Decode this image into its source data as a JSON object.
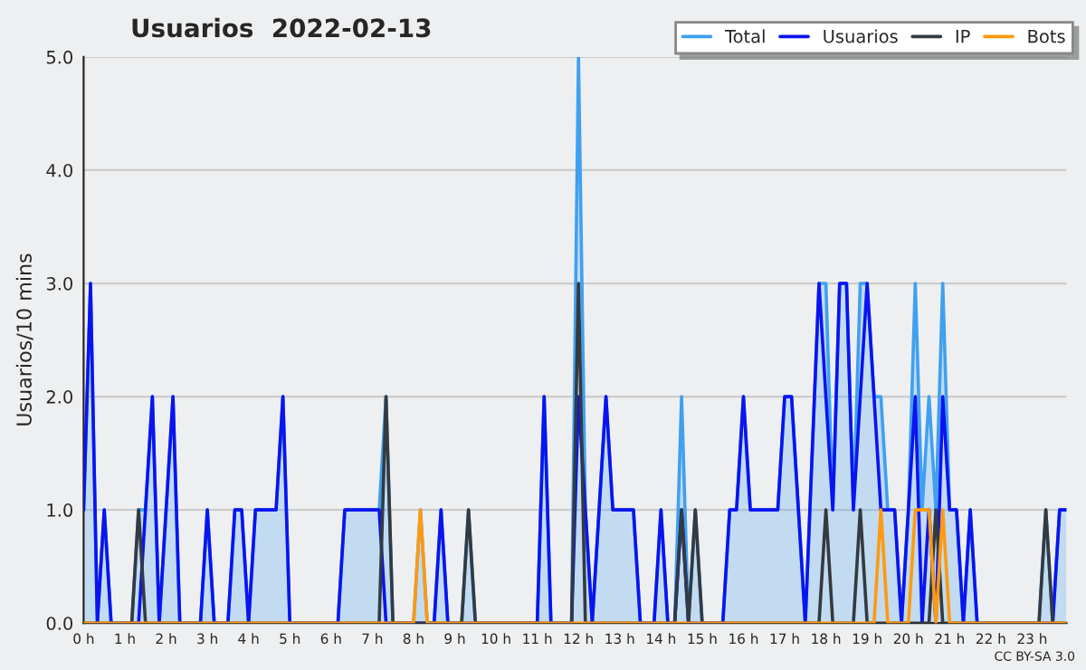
{
  "chart_data": {
    "type": "line",
    "title": "Usuarios  2022-02-13",
    "ylabel": "Usuarios/10 mins",
    "x": [
      0,
      0.167,
      0.333,
      0.5,
      0.667,
      0.833,
      1,
      1.167,
      1.333,
      1.5,
      1.667,
      1.833,
      2,
      2.167,
      2.333,
      2.5,
      2.667,
      2.833,
      3,
      3.167,
      3.333,
      3.5,
      3.667,
      3.833,
      4,
      4.167,
      4.333,
      4.5,
      4.667,
      4.833,
      5,
      5.167,
      5.333,
      5.5,
      5.667,
      5.833,
      6,
      6.167,
      6.333,
      6.5,
      6.667,
      6.833,
      7,
      7.167,
      7.333,
      7.5,
      7.667,
      7.833,
      8,
      8.167,
      8.333,
      8.5,
      8.667,
      8.833,
      9,
      9.167,
      9.333,
      9.5,
      9.667,
      9.833,
      10,
      10.167,
      10.333,
      10.5,
      10.667,
      10.833,
      11,
      11.167,
      11.333,
      11.5,
      11.667,
      11.833,
      12,
      12.167,
      12.333,
      12.5,
      12.667,
      12.833,
      13,
      13.167,
      13.333,
      13.5,
      13.667,
      13.833,
      14,
      14.167,
      14.333,
      14.5,
      14.667,
      14.833,
      15,
      15.167,
      15.333,
      15.5,
      15.667,
      15.833,
      16,
      16.167,
      16.333,
      16.5,
      16.667,
      16.833,
      17,
      17.167,
      17.333,
      17.5,
      17.667,
      17.833,
      18,
      18.167,
      18.333,
      18.5,
      18.667,
      18.833,
      19,
      19.167,
      19.333,
      19.5,
      19.667,
      19.833,
      20,
      20.167,
      20.333,
      20.5,
      20.667,
      20.833,
      21,
      21.167,
      21.333,
      21.5,
      21.667,
      21.833,
      22,
      22.167,
      22.333,
      22.5,
      22.667,
      22.833,
      23,
      23.167,
      23.333,
      23.5,
      23.667,
      23.833
    ],
    "series": [
      {
        "name": "Total",
        "type": "area",
        "color": "#3fa0f0",
        "values": [
          1,
          3,
          0,
          1,
          0,
          0,
          0,
          0,
          1,
          1,
          2,
          0,
          1,
          2,
          0,
          0,
          0,
          0,
          1,
          0,
          0,
          0,
          1,
          1,
          0,
          1,
          1,
          1,
          1,
          2,
          0,
          0,
          0,
          0,
          0,
          0,
          0,
          0,
          1,
          1,
          1,
          1,
          1,
          1,
          2,
          0,
          0,
          0,
          0,
          1,
          0,
          0,
          1,
          0,
          0,
          0,
          1,
          0,
          0,
          0,
          0,
          0,
          0,
          0,
          0,
          0,
          0,
          2,
          0,
          0,
          0,
          0,
          5,
          1,
          0,
          1,
          2,
          1,
          1,
          1,
          1,
          0,
          0,
          0,
          1,
          0,
          0,
          2,
          0,
          1,
          0,
          0,
          0,
          0,
          1,
          1,
          2,
          1,
          1,
          1,
          1,
          1,
          2,
          2,
          1,
          0,
          1.5,
          3,
          3,
          1,
          3,
          3,
          1,
          3,
          3,
          2,
          2,
          1,
          1,
          0,
          1,
          3,
          1,
          2,
          1,
          3,
          1,
          1,
          0,
          1,
          0,
          0,
          0,
          0,
          0,
          0,
          0,
          0,
          0,
          0,
          1,
          0,
          1,
          1
        ]
      },
      {
        "name": "Usuarios",
        "color": "#0a14f0",
        "values": [
          1,
          3,
          0,
          1,
          0,
          0,
          0,
          0,
          0,
          1,
          2,
          0,
          1,
          2,
          0,
          0,
          0,
          0,
          1,
          0,
          0,
          0,
          1,
          1,
          0,
          1,
          1,
          1,
          1,
          2,
          0,
          0,
          0,
          0,
          0,
          0,
          0,
          0,
          1,
          1,
          1,
          1,
          1,
          1,
          0,
          0,
          0,
          0,
          0,
          0,
          0,
          0,
          1,
          0,
          0,
          0,
          0,
          0,
          0,
          0,
          0,
          0,
          0,
          0,
          0,
          0,
          0,
          2,
          0,
          0,
          0,
          0,
          2,
          1,
          0,
          1,
          2,
          1,
          1,
          1,
          1,
          0,
          0,
          0,
          1,
          0,
          0,
          1,
          0,
          0,
          0,
          0,
          0,
          0,
          1,
          1,
          2,
          1,
          1,
          1,
          1,
          1,
          2,
          2,
          1,
          0,
          1.5,
          3,
          2,
          1,
          3,
          3,
          1,
          2,
          3,
          2,
          1,
          1,
          1,
          0,
          1,
          2,
          0,
          1,
          0,
          2,
          1,
          1,
          0,
          1,
          0,
          0,
          0,
          0,
          0,
          0,
          0,
          0,
          0,
          0,
          0,
          0,
          1,
          1
        ]
      },
      {
        "name": "IP",
        "color": "#333a40",
        "values": [
          0,
          0,
          0,
          0,
          0,
          0,
          0,
          0,
          1,
          0,
          0,
          0,
          0,
          0,
          0,
          0,
          0,
          0,
          0,
          0,
          0,
          0,
          0,
          0,
          0,
          0,
          0,
          0,
          0,
          0,
          0,
          0,
          0,
          0,
          0,
          0,
          0,
          0,
          0,
          0,
          0,
          0,
          0,
          0,
          2,
          0,
          0,
          0,
          0,
          0,
          0,
          0,
          0,
          0,
          0,
          0,
          1,
          0,
          0,
          0,
          0,
          0,
          0,
          0,
          0,
          0,
          0,
          0,
          0,
          0,
          0,
          0,
          3,
          0,
          0,
          0,
          0,
          0,
          0,
          0,
          0,
          0,
          0,
          0,
          0,
          0,
          0,
          1,
          0,
          1,
          0,
          0,
          0,
          0,
          0,
          0,
          0,
          0,
          0,
          0,
          0,
          0,
          0,
          0,
          0,
          0,
          0,
          0,
          1,
          0,
          0,
          0,
          0,
          1,
          0,
          0,
          0,
          0,
          0,
          0,
          0,
          0,
          0,
          0,
          1,
          0,
          0,
          0,
          0,
          0,
          0,
          0,
          0,
          0,
          0,
          0,
          0,
          0,
          0,
          0,
          1,
          0,
          0,
          0
        ]
      },
      {
        "name": "Bots",
        "color": "#ff9a10",
        "values": [
          0,
          0,
          0,
          0,
          0,
          0,
          0,
          0,
          0,
          0,
          0,
          0,
          0,
          0,
          0,
          0,
          0,
          0,
          0,
          0,
          0,
          0,
          0,
          0,
          0,
          0,
          0,
          0,
          0,
          0,
          0,
          0,
          0,
          0,
          0,
          0,
          0,
          0,
          0,
          0,
          0,
          0,
          0,
          0,
          0,
          0,
          0,
          0,
          0,
          1,
          0,
          0,
          0,
          0,
          0,
          0,
          0,
          0,
          0,
          0,
          0,
          0,
          0,
          0,
          0,
          0,
          0,
          0,
          0,
          0,
          0,
          0,
          0,
          0,
          0,
          0,
          0,
          0,
          0,
          0,
          0,
          0,
          0,
          0,
          0,
          0,
          0,
          0,
          0,
          0,
          0,
          0,
          0,
          0,
          0,
          0,
          0,
          0,
          0,
          0,
          0,
          0,
          0,
          0,
          0,
          0,
          0,
          0,
          0,
          0,
          0,
          0,
          0,
          0,
          0,
          0,
          1,
          0,
          0,
          0,
          0,
          1,
          1,
          1,
          0,
          1,
          0,
          0,
          0,
          0,
          0,
          0,
          0,
          0,
          0,
          0,
          0,
          0,
          0,
          0,
          0,
          0,
          0,
          0
        ]
      }
    ],
    "xlim": [
      0,
      23.833
    ],
    "xticks": [
      {
        "value": 0,
        "label": "0 h"
      },
      {
        "value": 1,
        "label": "1 h"
      },
      {
        "value": 2,
        "label": "2 h"
      },
      {
        "value": 3,
        "label": "3 h"
      },
      {
        "value": 4,
        "label": "4 h"
      },
      {
        "value": 5,
        "label": "5 h"
      },
      {
        "value": 6,
        "label": "6 h"
      },
      {
        "value": 7,
        "label": "7 h"
      },
      {
        "value": 8,
        "label": "8 h"
      },
      {
        "value": 9,
        "label": "9 h"
      },
      {
        "value": 10,
        "label": "10 h"
      },
      {
        "value": 11,
        "label": "11 h"
      },
      {
        "value": 12,
        "label": "12 h"
      },
      {
        "value": 13,
        "label": "13 h"
      },
      {
        "value": 14,
        "label": "14 h"
      },
      {
        "value": 15,
        "label": "15 h"
      },
      {
        "value": 16,
        "label": "16 h"
      },
      {
        "value": 17,
        "label": "17 h"
      },
      {
        "value": 18,
        "label": "18 h"
      },
      {
        "value": 19,
        "label": "19 h"
      },
      {
        "value": 20,
        "label": "20 h"
      },
      {
        "value": 21,
        "label": "21 h"
      },
      {
        "value": 22,
        "label": "22 h"
      },
      {
        "value": 23,
        "label": "23 h"
      }
    ],
    "ylim": [
      0,
      5
    ],
    "yticks": [
      {
        "value": 0,
        "label": "0.0"
      },
      {
        "value": 1,
        "label": "1.0"
      },
      {
        "value": 2,
        "label": "2.0"
      },
      {
        "value": 3,
        "label": "3.0"
      },
      {
        "value": 4,
        "label": "4.0"
      },
      {
        "value": 5,
        "label": "5.0"
      }
    ],
    "grid": "y",
    "legend": "top right",
    "marker": "none",
    "line_style": "solid",
    "annotations": [
      "CC BY-SA 3.0"
    ]
  }
}
